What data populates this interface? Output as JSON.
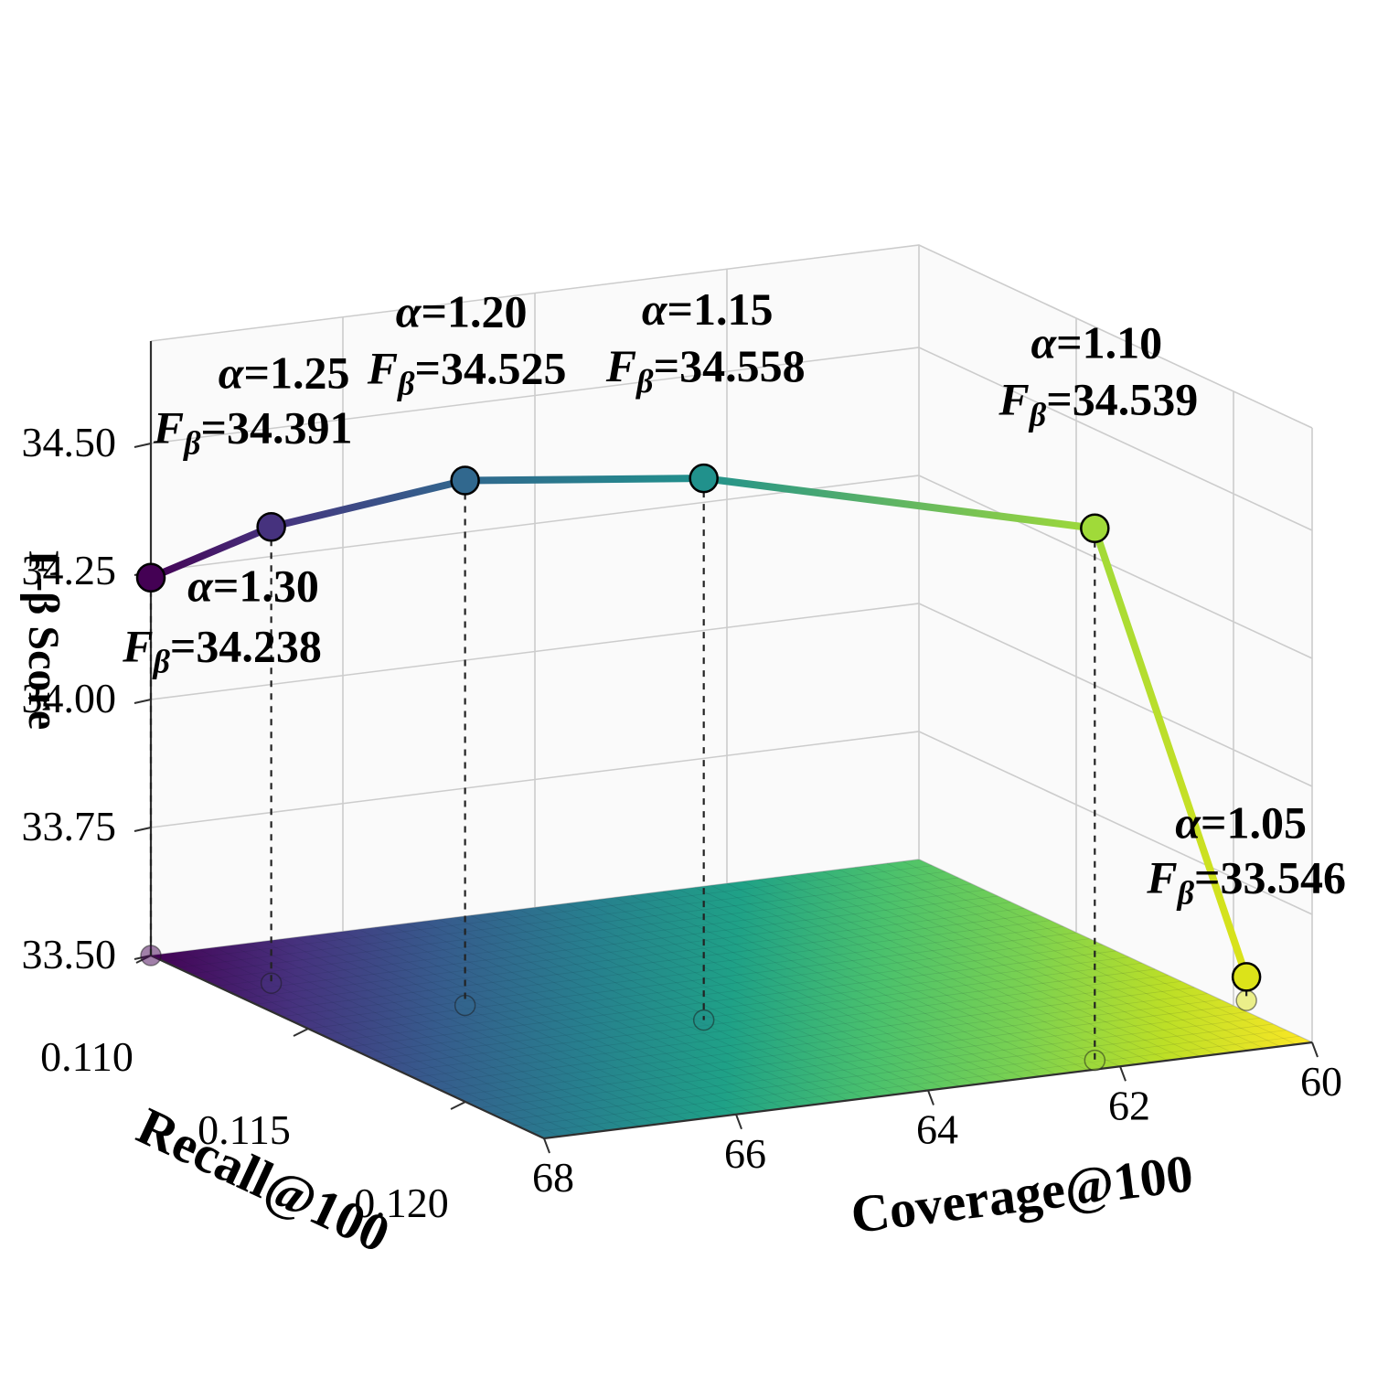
{
  "background": "#ffffff",
  "colors": {
    "grid": "#cccccc",
    "pane": "#f5f5f5",
    "spine": "#2f2f2f",
    "drop_line": "#222222",
    "annotation": "#000000"
  },
  "chart_data": {
    "type": "line3d",
    "title": "",
    "xlabel": "Coverage@100",
    "ylabel": "Recall@100",
    "zlabel": "F-β Score",
    "legend": null,
    "grid": true,
    "x_axis": {
      "range": [
        68,
        60
      ],
      "ticks": [
        {
          "label": "68",
          "value": 68
        },
        {
          "label": "66",
          "value": 66
        },
        {
          "label": "64",
          "value": 64
        },
        {
          "label": "62",
          "value": 62
        },
        {
          "label": "60",
          "value": 60
        }
      ]
    },
    "y_axis": {
      "range": [
        0.11,
        0.1225
      ],
      "ticks": [
        {
          "label": "0.110",
          "value": 0.11
        },
        {
          "label": "0.115",
          "value": 0.115
        },
        {
          "label": "0.120",
          "value": 0.12
        }
      ]
    },
    "z_axis": {
      "range": [
        33.5,
        34.7
      ],
      "ticks": [
        {
          "label": "33.50",
          "value": 33.5
        },
        {
          "label": "33.75",
          "value": 33.75
        },
        {
          "label": "34.00",
          "value": 34.0
        },
        {
          "label": "34.25",
          "value": 34.25
        },
        {
          "label": "34.50",
          "value": 34.5
        }
      ]
    },
    "symbols": {
      "alpha": "α",
      "f": "F",
      "beta_sub": "β",
      "equals": "="
    },
    "points": [
      {
        "alpha": "1.30",
        "fbeta": "34.238",
        "fbeta_value": 34.238,
        "coverage": 68.0,
        "recall": 0.11,
        "color": "#440154"
      },
      {
        "alpha": "1.25",
        "fbeta": "34.391",
        "fbeta_value": 34.391,
        "coverage": 67.5,
        "recall": 0.1123,
        "color": "#46327e"
      },
      {
        "alpha": "1.20",
        "fbeta": "34.525",
        "fbeta_value": 34.525,
        "coverage": 66.3,
        "recall": 0.1148,
        "color": "#31688e"
      },
      {
        "alpha": "1.15",
        "fbeta": "34.558",
        "fbeta_value": 34.558,
        "coverage": 64.6,
        "recall": 0.1172,
        "color": "#21918c"
      },
      {
        "alpha": "1.10",
        "fbeta": "34.539",
        "fbeta_value": 34.539,
        "coverage": 62.1,
        "recall": 0.122,
        "color": "#a0da39"
      },
      {
        "alpha": "1.05",
        "fbeta": "33.546",
        "fbeta_value": 33.546,
        "coverage": 59.8,
        "recall": 0.1198,
        "color": "#dce319"
      }
    ],
    "surface": {
      "colormap": "viridis",
      "plane": "floor (z = 33.50)",
      "stops": [
        {
          "offset": 0.0,
          "color": "#440154"
        },
        {
          "offset": 0.125,
          "color": "#46327e"
        },
        {
          "offset": 0.25,
          "color": "#365c8d"
        },
        {
          "offset": 0.375,
          "color": "#277f8e"
        },
        {
          "offset": 0.5,
          "color": "#1fa187"
        },
        {
          "offset": 0.625,
          "color": "#4ac16d"
        },
        {
          "offset": 0.75,
          "color": "#7ad151"
        },
        {
          "offset": 0.875,
          "color": "#bddf26"
        },
        {
          "offset": 1.0,
          "color": "#fde725"
        }
      ]
    }
  }
}
